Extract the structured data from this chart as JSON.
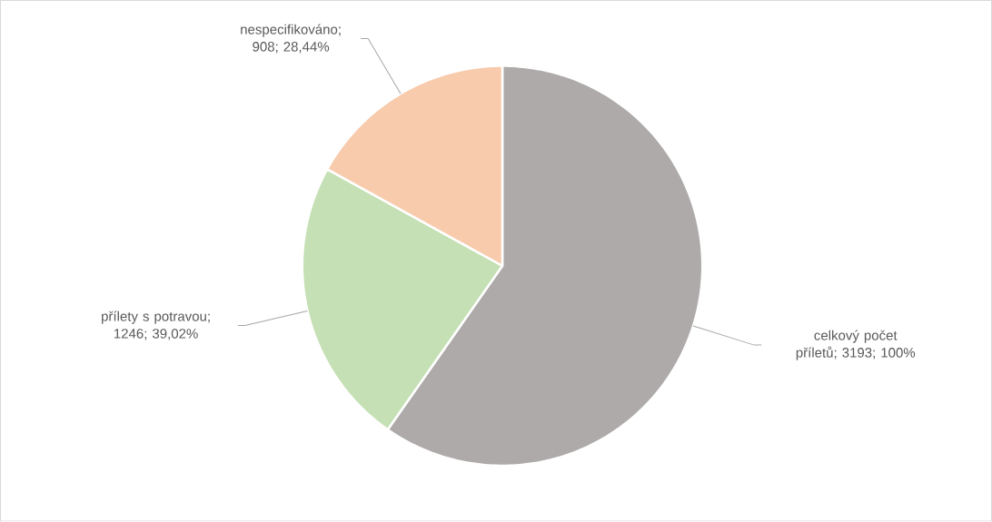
{
  "chart_data": {
    "type": "pie",
    "categories": [
      "celkový počet příletů",
      "přílety s potravou",
      "nespecifikováno"
    ],
    "values": [
      3193,
      1246,
      908
    ],
    "colors": [
      "#aeaaaa",
      "#c5e0b4",
      "#f8cbad"
    ],
    "value_labels": [
      "; 3193; 100%",
      "; 1246; 39,02%",
      "; 908; 28,44%"
    ]
  }
}
